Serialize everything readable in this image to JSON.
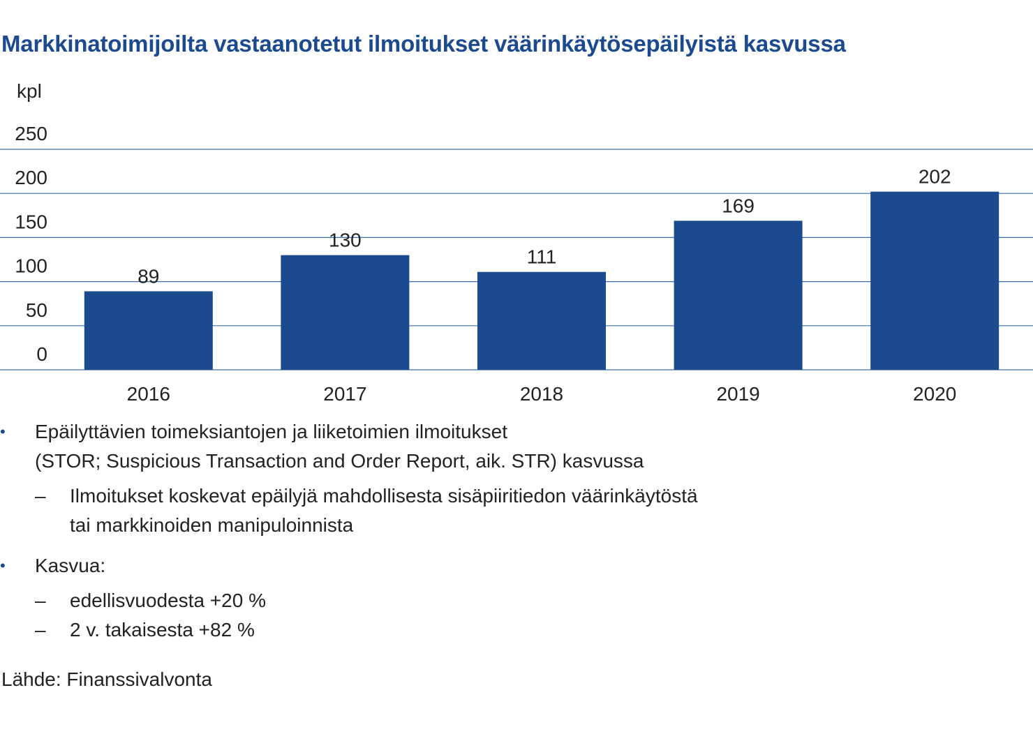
{
  "title": "Markkinatoimijoilta vastaanotetut ilmoitukset väärinkäytösepäilyistä kasvussa",
  "colors": {
    "bar": "#1b4a8f",
    "grid": "#3d6fb5",
    "title": "#1b4a8f",
    "text": "#222222"
  },
  "chart_data": {
    "type": "bar",
    "title": "Markkinatoimijoilta vastaanotetut ilmoitukset väärinkäytösepäilyistä kasvussa",
    "ylabel": "kpl",
    "xlabel": "",
    "categories": [
      "2016",
      "2017",
      "2018",
      "2019",
      "2020"
    ],
    "values": [
      89,
      130,
      111,
      169,
      202
    ],
    "data_labels": [
      "89",
      "130",
      "111",
      "169",
      "202"
    ],
    "ylim": [
      0,
      250
    ],
    "yticks": [
      0,
      50,
      100,
      150,
      200,
      250
    ],
    "grid": true,
    "legend": "none"
  },
  "notes": [
    {
      "bullet": "•",
      "lines": [
        "Epäilyttävien toimeksiantojen ja liiketoimien ilmoitukset",
        "(STOR; Suspicious Transaction and Order Report, aik. STR) kasvussa"
      ],
      "subs": [
        {
          "dash": "–",
          "lines": [
            "Ilmoitukset koskevat epäilyjä mahdollisesta sisäpiiritiedon väärinkäytöstä",
            "tai markkinoiden manipuloinnista"
          ]
        }
      ]
    },
    {
      "bullet": "•",
      "lines": [
        "Kasvua:"
      ],
      "subs": [
        {
          "dash": "–",
          "lines": [
            "edellisvuodesta +20 %"
          ]
        },
        {
          "dash": "–",
          "lines": [
            "2 v. takaisesta +82 %"
          ]
        }
      ]
    }
  ],
  "source": "Lähde: Finanssivalvonta"
}
